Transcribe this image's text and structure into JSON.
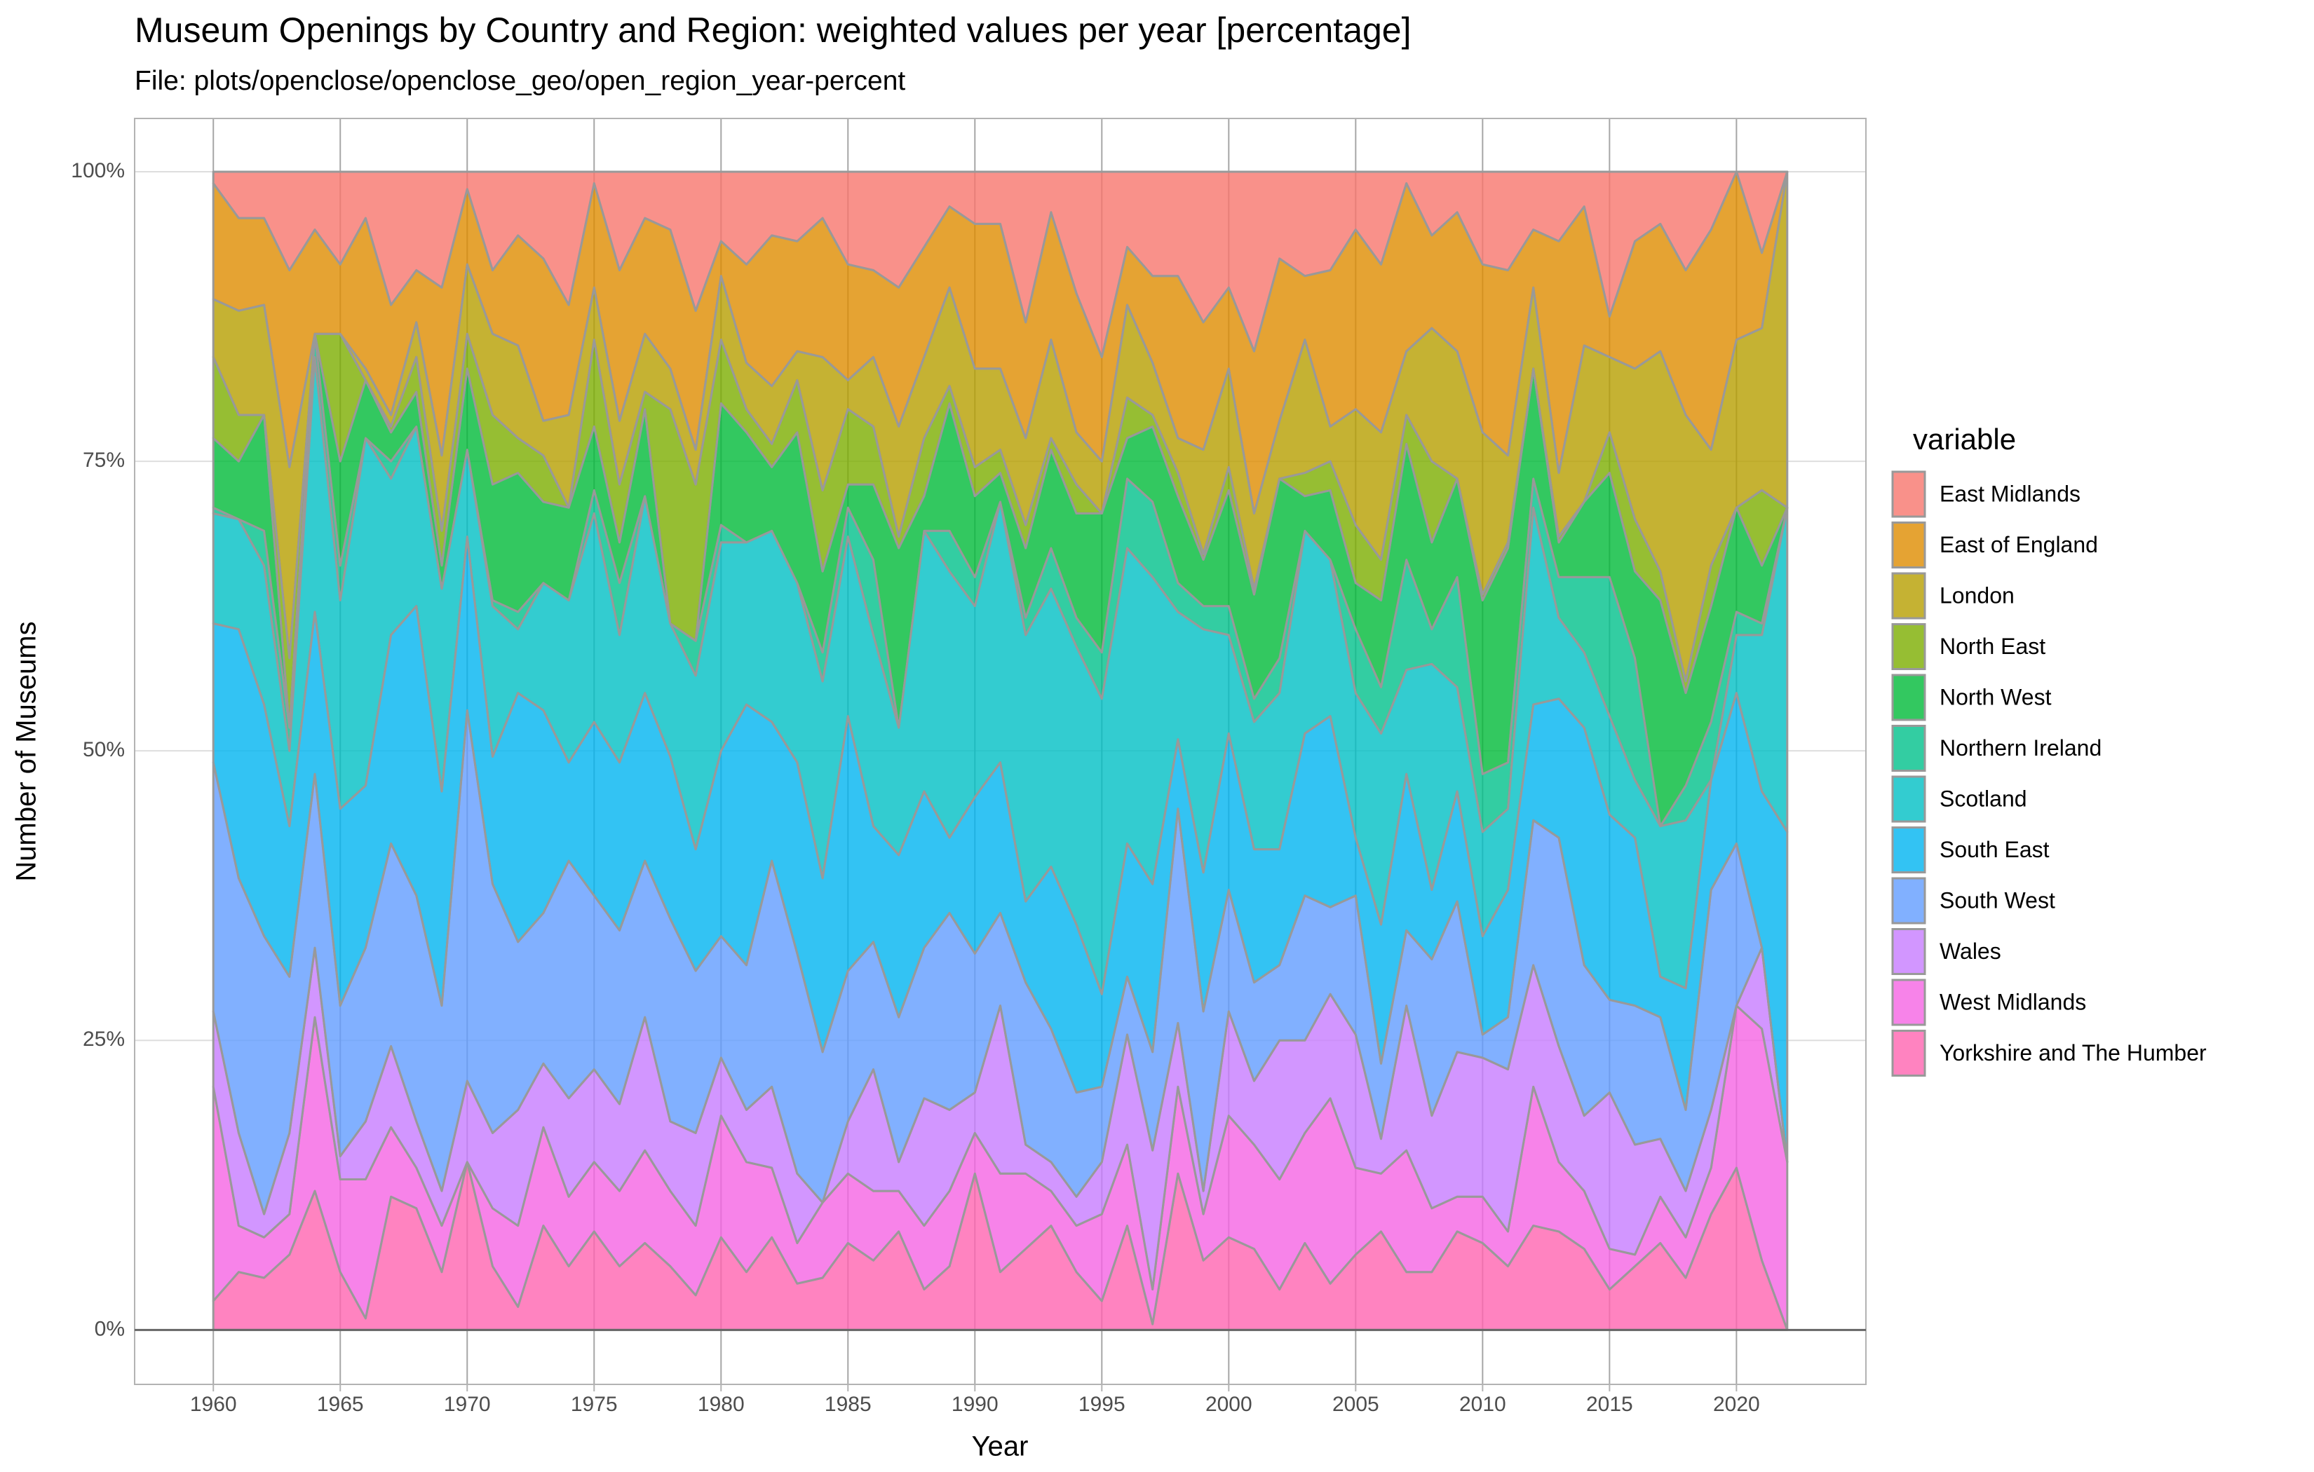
{
  "chart_data": {
    "type": "area",
    "stacked": true,
    "title": "Museum Openings by Country and Region: weighted values per year [percentage]",
    "subtitle": "File: plots/openclose/openclose_geo/open_region_year-percent",
    "x_label": "Year",
    "y_label": "Number of Museums",
    "legend_title": "variable",
    "legend": "right",
    "grid": true,
    "xlim": [
      1956.9,
      2025.1
    ],
    "ylim": [
      -4.7,
      104.6
    ],
    "xticks": [
      1960,
      1965,
      1970,
      1975,
      1980,
      1985,
      1990,
      1995,
      2000,
      2005,
      2010,
      2015,
      2020
    ],
    "yticks": [
      {
        "value": 0,
        "label": "0%"
      },
      {
        "value": 25,
        "label": "25%"
      },
      {
        "value": 50,
        "label": "50%"
      },
      {
        "value": 75,
        "label": "75%"
      },
      {
        "value": 100,
        "label": "100%"
      }
    ],
    "x": [
      1960,
      1961,
      1962,
      1963,
      1964,
      1965,
      1966,
      1967,
      1968,
      1969,
      1970,
      1971,
      1972,
      1973,
      1974,
      1975,
      1976,
      1977,
      1978,
      1979,
      1980,
      1981,
      1982,
      1983,
      1984,
      1985,
      1986,
      1987,
      1988,
      1989,
      1990,
      1991,
      1992,
      1993,
      1994,
      1995,
      1996,
      1997,
      1998,
      1999,
      2000,
      2001,
      2002,
      2003,
      2004,
      2005,
      2006,
      2007,
      2008,
      2009,
      2010,
      2011,
      2012,
      2013,
      2014,
      2015,
      2016,
      2017,
      2018,
      2019,
      2020,
      2021,
      2022
    ],
    "series": [
      {
        "name": "East Midlands",
        "color": "#F8766D",
        "values": [
          1,
          4,
          4,
          8.5,
          5,
          8,
          4,
          11.5,
          8.5,
          10,
          1.5,
          8.5,
          5.5,
          7.5,
          11.5,
          1,
          8.5,
          4,
          5,
          12,
          6,
          8,
          5.5,
          6,
          4,
          8,
          8.5,
          10,
          6.5,
          3,
          4.5,
          4.5,
          13,
          3.5,
          10.5,
          16,
          6.5,
          9,
          9,
          13,
          10,
          15.5,
          7.5,
          9,
          8.5,
          5,
          8,
          1,
          5.5,
          3.5,
          8,
          8.5,
          5,
          6,
          3,
          12.5,
          6,
          4.5,
          8.5,
          5,
          0,
          7,
          0
        ]
      },
      {
        "name": "East of England",
        "color": "#DE8C00",
        "values": [
          10,
          8,
          7.5,
          17,
          9,
          6,
          13,
          9.5,
          4.5,
          14.5,
          6.5,
          5.5,
          9.5,
          14,
          9.5,
          9,
          13,
          10,
          12,
          12,
          3,
          8.5,
          13,
          9.5,
          12,
          10,
          7.5,
          12,
          9.5,
          7,
          12.5,
          12.5,
          10,
          11,
          12,
          9,
          5,
          7.5,
          14,
          11,
          7,
          14,
          14,
          5.5,
          13.5,
          15.5,
          14.5,
          14.5,
          8,
          12,
          14.5,
          16,
          5,
          20,
          12,
          3.5,
          11,
          11,
          12.5,
          19,
          14.5,
          6.5,
          0
        ]
      },
      {
        "name": "London",
        "color": "#B79F00",
        "values": [
          5,
          9,
          9.5,
          16.5,
          0,
          0,
          1,
          1,
          3,
          6.5,
          6,
          7,
          8,
          3,
          8,
          4.5,
          5.5,
          5,
          3.5,
          3,
          5.5,
          4,
          5,
          2.5,
          11.5,
          2.5,
          6,
          9.5,
          7,
          8.5,
          8.5,
          7,
          7.5,
          8.5,
          4.5,
          4.5,
          8,
          4.5,
          3,
          9,
          8.5,
          6.5,
          5,
          11.5,
          3,
          10,
          11,
          5.5,
          11.5,
          11,
          14,
          7.5,
          7,
          5.5,
          13.5,
          6.5,
          13,
          19,
          23,
          10,
          14.5,
          14,
          29
        ]
      },
      {
        "name": "North East",
        "color": "#7CAE00",
        "values": [
          7,
          4,
          0,
          6,
          0,
          11,
          0,
          0.5,
          3,
          3,
          3,
          6,
          3,
          4,
          0,
          7.5,
          5,
          1.5,
          18.5,
          13.5,
          5.5,
          2,
          2,
          4.5,
          7,
          6.5,
          5,
          1,
          5,
          1.5,
          2.5,
          2,
          2,
          1,
          2.5,
          0,
          3.5,
          1,
          2,
          0.5,
          2,
          0.5,
          0,
          2,
          2.5,
          5,
          3.5,
          2.5,
          7,
          0,
          0.5,
          0.5,
          0,
          0.5,
          0,
          3.5,
          4.5,
          2.5,
          1,
          3.5,
          0,
          6.5,
          0
        ]
      },
      {
        "name": "North West",
        "color": "#00BA38",
        "values": [
          6,
          5,
          10,
          0,
          0,
          9,
          5,
          2.5,
          3,
          2,
          7,
          10,
          12,
          7,
          8,
          5.5,
          3.5,
          7.5,
          0,
          0,
          10.5,
          9.5,
          5.5,
          13,
          7,
          2,
          6.5,
          15.5,
          3,
          11,
          7,
          2.5,
          6,
          8.5,
          9,
          12,
          3.5,
          6.5,
          7.5,
          4,
          10,
          9,
          15.5,
          3,
          6,
          4,
          7.5,
          10,
          7.5,
          8.5,
          15,
          18.5,
          9.5,
          3,
          6.5,
          9,
          7.5,
          19.5,
          8,
          10,
          9,
          5,
          0
        ]
      },
      {
        "name": "Northern Ireland",
        "color": "#00C08B",
        "values": [
          0.5,
          0,
          3,
          2,
          2,
          3,
          0,
          1.5,
          0,
          0,
          0,
          0.5,
          1.5,
          0,
          0,
          2,
          4.5,
          0,
          0,
          3,
          1.5,
          0,
          0,
          0,
          2.5,
          2.5,
          6.5,
          0,
          0,
          3.5,
          2.5,
          0,
          1.5,
          3.5,
          2.5,
          4,
          6,
          6.5,
          2.5,
          2,
          2.5,
          2,
          3,
          0,
          0,
          5.5,
          4,
          9.5,
          3,
          9.5,
          5,
          4,
          2.5,
          3.5,
          6.5,
          12,
          10.5,
          0,
          3,
          5,
          2,
          1,
          0
        ]
      },
      {
        "name": "Scotland",
        "color": "#00BFC4",
        "values": [
          9.5,
          9.5,
          12,
          6.5,
          22,
          18,
          30,
          13.5,
          15.5,
          17.5,
          7.5,
          13,
          5.5,
          11,
          14,
          18,
          11,
          17,
          11.5,
          15,
          18,
          14,
          16.5,
          15.5,
          17,
          15.5,
          16.5,
          11,
          22.5,
          23,
          16.5,
          22.5,
          23,
          24,
          24,
          25.5,
          25.5,
          26.5,
          11,
          21,
          8.5,
          11,
          13.5,
          17.5,
          13.5,
          12.5,
          16.5,
          9,
          19.5,
          9,
          9,
          7,
          17,
          7,
          6.5,
          8.5,
          5,
          13,
          14.5,
          0,
          5,
          13.5,
          28
        ]
      },
      {
        "name": "South East",
        "color": "#00B4F0",
        "values": [
          12,
          21.5,
          20,
          13,
          14,
          17,
          14,
          18,
          25,
          18.5,
          15,
          11,
          21.5,
          17.5,
          8.5,
          15,
          14.5,
          14.5,
          14,
          10.5,
          16,
          22.5,
          12,
          16.5,
          15,
          22,
          10,
          14,
          13.5,
          6.5,
          13.5,
          13,
          7,
          14,
          14.5,
          8,
          11.5,
          14.5,
          6,
          12,
          13.5,
          11.5,
          10,
          14,
          16.5,
          5,
          12,
          13.5,
          6,
          9.5,
          8.5,
          11,
          10,
          12,
          20.5,
          16,
          14.5,
          3.5,
          10.5,
          9.5,
          13,
          13.5,
          28.5
        ]
      },
      {
        "name": "South West",
        "color": "#619CFF",
        "values": [
          21.5,
          22,
          24,
          13.5,
          15,
          13,
          15,
          17.5,
          19.5,
          16,
          32,
          21.5,
          14.5,
          13,
          20.5,
          15,
          15,
          13.5,
          17.5,
          14,
          10.5,
          12.5,
          19.5,
          19,
          13,
          13,
          11,
          12.5,
          13,
          17,
          12,
          8,
          14,
          11.5,
          9,
          6.5,
          5,
          8.5,
          18.5,
          15.5,
          10.5,
          8.5,
          6.5,
          12.5,
          7.5,
          12,
          6.5,
          6.5,
          13.5,
          13,
          2,
          4.5,
          12.5,
          18,
          13,
          8,
          12,
          10.5,
          7,
          19,
          14,
          0,
          0
        ]
      },
      {
        "name": "Wales",
        "color": "#C77CFF",
        "values": [
          6.5,
          8,
          2,
          7,
          6,
          2,
          5,
          7,
          4,
          3,
          7,
          6.5,
          10,
          5.5,
          8.5,
          8,
          7.5,
          11.5,
          6,
          8,
          5,
          4.5,
          7,
          6,
          0,
          4.5,
          10.5,
          2.5,
          11,
          7,
          3.5,
          14.5,
          2.5,
          2.5,
          2.5,
          4.5,
          9.5,
          12,
          5.5,
          2,
          9,
          5.5,
          12,
          8,
          9,
          11.5,
          3,
          12.5,
          8,
          12.5,
          12,
          14,
          10.5,
          10,
          6.5,
          13.5,
          9.5,
          5,
          4,
          5,
          0,
          7,
          0
        ]
      },
      {
        "name": "West Midlands",
        "color": "#F564E3",
        "values": [
          18.5,
          4,
          3.5,
          3.5,
          15,
          8,
          12,
          6,
          3.5,
          4,
          0,
          5,
          7,
          8.5,
          6,
          6,
          6.5,
          8,
          6.5,
          6,
          10.5,
          9.5,
          6,
          3.5,
          6.5,
          6,
          6,
          3.5,
          5.5,
          6.5,
          3.5,
          8.5,
          6.5,
          3,
          4,
          7.5,
          7,
          3,
          7.5,
          4,
          10.5,
          9,
          9.5,
          9.5,
          16,
          7.5,
          5,
          10.5,
          5.5,
          3,
          4,
          3,
          12,
          6,
          5,
          3.5,
          1,
          4,
          3.5,
          4,
          14,
          20,
          14.5
        ]
      },
      {
        "name": "Yorkshire and The Humber",
        "color": "#FF64B0",
        "values": [
          2.5,
          5,
          4.5,
          6.5,
          12,
          5,
          1,
          11.5,
          10.5,
          5,
          14.5,
          5.5,
          2,
          9,
          5.5,
          8.5,
          5.5,
          7.5,
          5.5,
          3,
          8,
          5,
          8,
          4,
          4.5,
          7.5,
          6,
          8.5,
          3.5,
          5.5,
          13.5,
          5,
          7,
          9,
          5,
          2.5,
          9,
          0.5,
          13.5,
          6,
          8,
          7,
          3.5,
          7.5,
          4,
          6.5,
          8.5,
          5,
          5,
          8.5,
          7.5,
          5.5,
          9,
          8.5,
          7,
          3.5,
          5.5,
          7.5,
          4.5,
          10,
          14,
          6,
          0
        ]
      }
    ]
  }
}
